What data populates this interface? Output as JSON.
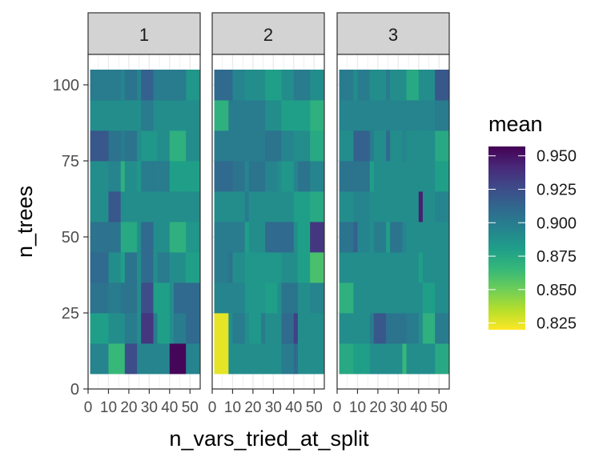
{
  "chart_data": {
    "type": "heatmap",
    "xlabel": "n_vars_tried_at_split",
    "ylabel": "n_trees",
    "xlim": [
      0,
      55
    ],
    "ylim": [
      0,
      110
    ],
    "xticks": [
      0,
      10,
      20,
      30,
      40,
      50
    ],
    "yticks": [
      0,
      25,
      50,
      75,
      100
    ],
    "xtick_labels": [
      "0",
      "10",
      "20",
      "30",
      "40",
      "50"
    ],
    "ytick_labels": [
      "0",
      "25",
      "50",
      "75",
      "100"
    ],
    "x_centers": [
      1.5,
      5,
      9,
      13,
      17,
      21,
      25,
      29,
      33,
      37,
      41,
      45,
      49,
      52.5
    ],
    "x_edges": [
      1,
      2,
      8,
      10,
      16,
      18,
      24,
      26,
      32,
      34,
      40,
      42,
      48,
      50,
      55
    ],
    "y_centers": [
      10,
      20,
      30,
      40,
      50,
      60,
      70,
      80,
      90,
      100
    ],
    "y_edges": [
      5,
      15,
      25,
      35,
      45,
      55,
      65,
      75,
      85,
      95,
      105
    ],
    "panels": [
      {
        "label": "1",
        "values": [
          [
            0.895,
            0.895,
            0.895,
            0.865,
            0.865,
            0.925,
            0.895,
            0.895,
            0.895,
            0.895,
            0.955,
            0.955,
            0.895,
            0.895
          ],
          [
            0.88,
            0.88,
            0.88,
            0.89,
            0.89,
            0.9,
            0.89,
            0.935,
            0.9,
            0.88,
            0.89,
            0.9,
            0.91,
            0.91
          ],
          [
            0.905,
            0.905,
            0.905,
            0.9,
            0.905,
            0.905,
            0.89,
            0.925,
            0.88,
            0.88,
            0.89,
            0.91,
            0.91,
            0.91
          ],
          [
            0.91,
            0.91,
            0.91,
            0.89,
            0.88,
            0.905,
            0.89,
            0.91,
            0.89,
            0.9,
            0.89,
            0.89,
            0.88,
            0.88
          ],
          [
            0.905,
            0.905,
            0.905,
            0.905,
            0.875,
            0.875,
            0.89,
            0.91,
            0.89,
            0.89,
            0.87,
            0.87,
            0.885,
            0.885
          ],
          [
            0.89,
            0.89,
            0.89,
            0.92,
            0.89,
            0.89,
            0.89,
            0.89,
            0.89,
            0.89,
            0.89,
            0.89,
            0.89,
            0.89
          ],
          [
            0.89,
            0.89,
            0.89,
            0.895,
            0.87,
            0.89,
            0.885,
            0.9,
            0.9,
            0.9,
            0.88,
            0.88,
            0.88,
            0.88
          ],
          [
            0.92,
            0.92,
            0.92,
            0.905,
            0.9,
            0.905,
            0.89,
            0.885,
            0.885,
            0.89,
            0.87,
            0.87,
            0.89,
            0.89
          ],
          [
            0.89,
            0.89,
            0.89,
            0.89,
            0.89,
            0.89,
            0.89,
            0.9,
            0.89,
            0.89,
            0.89,
            0.89,
            0.89,
            0.89
          ],
          [
            0.9,
            0.9,
            0.9,
            0.9,
            0.895,
            0.905,
            0.895,
            0.915,
            0.9,
            0.9,
            0.9,
            0.9,
            0.885,
            0.885
          ]
        ]
      },
      {
        "label": "2",
        "values": [
          [
            0.825,
            0.825,
            0.89,
            0.89,
            0.89,
            0.89,
            0.89,
            0.89,
            0.89,
            0.9,
            0.91,
            0.89,
            0.89,
            0.89
          ],
          [
            0.825,
            0.825,
            0.89,
            0.9,
            0.89,
            0.885,
            0.9,
            0.89,
            0.89,
            0.91,
            0.93,
            0.89,
            0.89,
            0.89
          ],
          [
            0.895,
            0.895,
            0.895,
            0.895,
            0.885,
            0.885,
            0.885,
            0.88,
            0.89,
            0.905,
            0.905,
            0.89,
            0.895,
            0.895
          ],
          [
            0.9,
            0.9,
            0.905,
            0.89,
            0.885,
            0.885,
            0.885,
            0.885,
            0.885,
            0.89,
            0.89,
            0.88,
            0.86,
            0.86
          ],
          [
            0.9,
            0.9,
            0.9,
            0.9,
            0.88,
            0.89,
            0.89,
            0.91,
            0.91,
            0.91,
            0.89,
            0.88,
            0.935,
            0.935
          ],
          [
            0.89,
            0.89,
            0.89,
            0.89,
            0.9,
            0.89,
            0.89,
            0.89,
            0.89,
            0.89,
            0.88,
            0.88,
            0.875,
            0.875
          ],
          [
            0.91,
            0.91,
            0.91,
            0.905,
            0.895,
            0.905,
            0.905,
            0.895,
            0.89,
            0.885,
            0.895,
            0.905,
            0.895,
            0.895
          ],
          [
            0.9,
            0.9,
            0.9,
            0.9,
            0.9,
            0.9,
            0.9,
            0.905,
            0.905,
            0.895,
            0.89,
            0.89,
            0.875,
            0.875
          ],
          [
            0.87,
            0.87,
            0.9,
            0.9,
            0.9,
            0.9,
            0.9,
            0.89,
            0.89,
            0.88,
            0.88,
            0.88,
            0.87,
            0.87
          ],
          [
            0.91,
            0.91,
            0.91,
            0.895,
            0.89,
            0.89,
            0.89,
            0.88,
            0.88,
            0.89,
            0.9,
            0.9,
            0.89,
            0.89
          ]
        ]
      },
      {
        "label": "3",
        "values": [
          [
            0.875,
            0.875,
            0.88,
            0.88,
            0.89,
            0.89,
            0.89,
            0.89,
            0.865,
            0.89,
            0.89,
            0.89,
            0.875,
            0.875
          ],
          [
            0.89,
            0.89,
            0.89,
            0.89,
            0.9,
            0.92,
            0.905,
            0.905,
            0.905,
            0.9,
            0.89,
            0.87,
            0.9,
            0.9
          ],
          [
            0.87,
            0.87,
            0.89,
            0.89,
            0.89,
            0.89,
            0.89,
            0.89,
            0.89,
            0.89,
            0.89,
            0.88,
            0.89,
            0.89
          ],
          [
            0.89,
            0.89,
            0.89,
            0.89,
            0.89,
            0.89,
            0.89,
            0.89,
            0.89,
            0.89,
            0.88,
            0.89,
            0.89,
            0.89
          ],
          [
            0.905,
            0.905,
            0.915,
            0.895,
            0.89,
            0.9,
            0.88,
            0.905,
            0.895,
            0.89,
            0.89,
            0.89,
            0.89,
            0.89
          ],
          [
            0.89,
            0.89,
            0.895,
            0.895,
            0.89,
            0.89,
            0.89,
            0.89,
            0.89,
            0.89,
            0.945,
            0.89,
            0.895,
            0.895
          ],
          [
            0.905,
            0.905,
            0.905,
            0.905,
            0.88,
            0.89,
            0.89,
            0.89,
            0.89,
            0.89,
            0.89,
            0.89,
            0.88,
            0.88
          ],
          [
            0.89,
            0.89,
            0.915,
            0.915,
            0.9,
            0.89,
            0.91,
            0.89,
            0.895,
            0.89,
            0.89,
            0.89,
            0.875,
            0.875
          ],
          [
            0.895,
            0.895,
            0.895,
            0.895,
            0.895,
            0.895,
            0.895,
            0.895,
            0.895,
            0.895,
            0.895,
            0.895,
            0.9,
            0.9
          ],
          [
            0.9,
            0.9,
            0.89,
            0.9,
            0.89,
            0.89,
            0.9,
            0.89,
            0.89,
            0.875,
            0.89,
            0.89,
            0.92,
            0.92
          ]
        ]
      }
    ],
    "legend": {
      "title": "mean",
      "breaks": [
        0.95,
        0.925,
        0.9,
        0.875,
        0.85,
        0.825
      ],
      "break_labels": [
        "0.950",
        "0.925",
        "0.900",
        "0.875",
        "0.850",
        "0.825"
      ],
      "min": 0.82,
      "max": 0.957,
      "palette": "viridis",
      "placement": "right"
    },
    "colors": {
      "viridis": [
        "#440154",
        "#482878",
        "#3E4A89",
        "#31688E",
        "#26828E",
        "#1F9E89",
        "#35B779",
        "#6DCD59",
        "#B4DE2C",
        "#FDE725"
      ],
      "strip_fill": "#D3D3D3",
      "panel_border": "#333333",
      "grid": "#EBEBEB"
    },
    "grid": true
  }
}
